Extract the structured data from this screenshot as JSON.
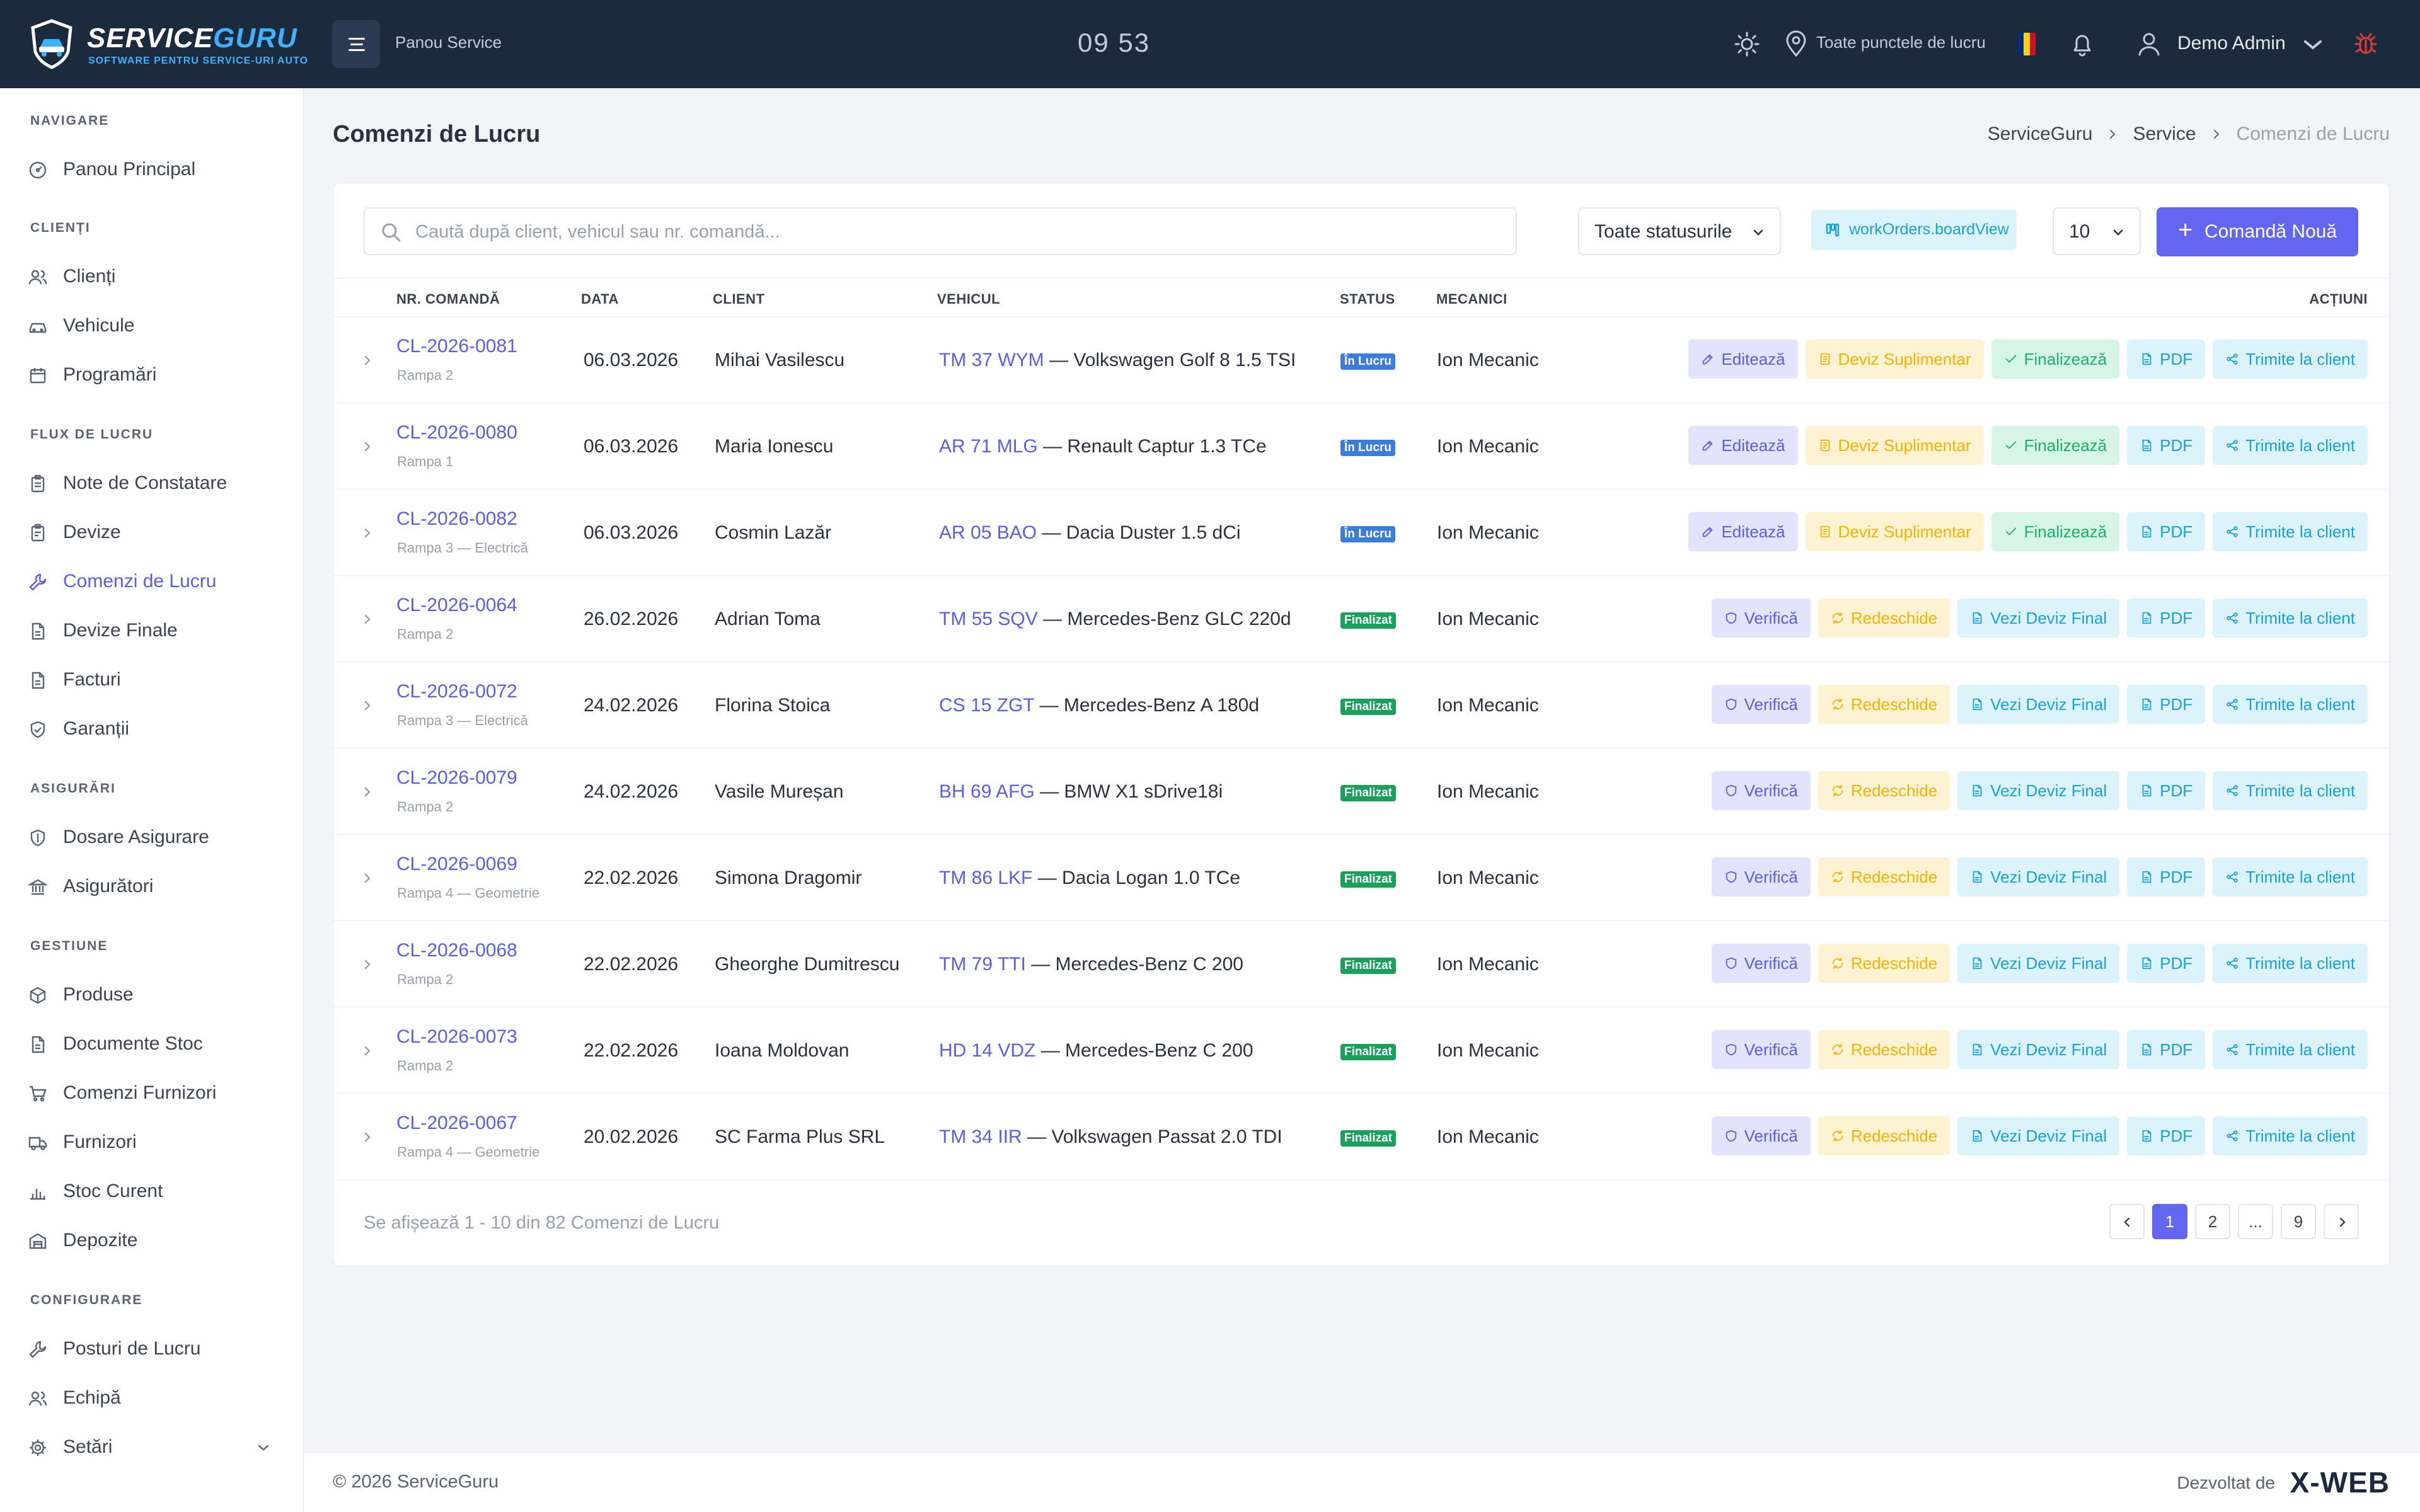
{
  "header": {
    "brand_part1": "SERVICE",
    "brand_part2": "GURU",
    "tagline": "SOFTWARE PENTRU SERVICE-URI AUTO",
    "panel_title": "Panou Service",
    "clock": "09 53",
    "locations": "Toate punctele de lucru",
    "user_name": "Demo Admin",
    "flag_colors": [
      "#002b7f",
      "#fcd116",
      "#ce1126"
    ]
  },
  "sidebar": {
    "sections": [
      {
        "title": "NAVIGARE",
        "items": [
          {
            "label": "Panou Principal",
            "icon": "dashboard-icon"
          }
        ]
      },
      {
        "title": "CLIENȚI",
        "items": [
          {
            "label": "Clienți",
            "icon": "users-icon"
          },
          {
            "label": "Vehicule",
            "icon": "car-icon"
          },
          {
            "label": "Programări",
            "icon": "calendar-icon"
          }
        ]
      },
      {
        "title": "FLUX DE LUCRU",
        "items": [
          {
            "label": "Note de Constatare",
            "icon": "clipboard-icon"
          },
          {
            "label": "Devize",
            "icon": "clipboard-icon"
          },
          {
            "label": "Comenzi de Lucru",
            "icon": "wrench-icon"
          },
          {
            "label": "Devize Finale",
            "icon": "file-icon"
          },
          {
            "label": "Facturi",
            "icon": "file-icon"
          },
          {
            "label": "Garanții",
            "icon": "shield-check-icon"
          }
        ]
      },
      {
        "title": "ASIGURĂRI",
        "items": [
          {
            "label": "Dosare Asigurare",
            "icon": "shield-icon"
          },
          {
            "label": "Asigurători",
            "icon": "bank-icon"
          }
        ]
      },
      {
        "title": "GESTIUNE",
        "items": [
          {
            "label": "Produse",
            "icon": "box-icon"
          },
          {
            "label": "Documente Stoc",
            "icon": "file-icon"
          },
          {
            "label": "Comenzi Furnizori",
            "icon": "cart-icon"
          },
          {
            "label": "Furnizori",
            "icon": "truck-icon"
          },
          {
            "label": "Stoc Curent",
            "icon": "chart-icon"
          },
          {
            "label": "Depozite",
            "icon": "warehouse-icon"
          }
        ]
      },
      {
        "title": "CONFIGURARE",
        "items": [
          {
            "label": "Posturi de Lucru",
            "icon": "wrench-icon"
          },
          {
            "label": "Echipă",
            "icon": "users-icon"
          },
          {
            "label": "Setări",
            "icon": "gear-icon"
          }
        ]
      }
    ],
    "active_item": "Comenzi de Lucru"
  },
  "main": {
    "page_title": "Comenzi de Lucru",
    "breadcrumb": [
      "ServiceGuru",
      "Service",
      "Comenzi de Lucru"
    ],
    "search_placeholder": "Caută după client, vehicul sau nr. comandă...",
    "status_filter": "Toate statusurile",
    "board_view_label": "workOrders.boardView",
    "per_page": "10",
    "new_order_label": "Comandă Nouă",
    "columns": [
      "NR. COMANDĂ",
      "DATA",
      "CLIENT",
      "VEHICUL",
      "STATUS",
      "MECANICI",
      "ACȚIUNI"
    ],
    "actions_in_progress": [
      "Editează",
      "Deviz Suplimentar",
      "Finalizează",
      "PDF",
      "Trimite la client"
    ],
    "actions_finished": [
      "Verifică",
      "Redeschide",
      "Vezi Deviz Final",
      "PDF",
      "Trimite la client"
    ],
    "status_colors": {
      "În Lucru": "#3b7ddd",
      "Finalizat": "#19a05a"
    },
    "rows": [
      {
        "id": "CL-2026-0081",
        "bay": "Rampa 2",
        "date": "06.03.2026",
        "client": "Mihai Vasilescu",
        "plate": "TM 37 WYM",
        "vehicle": " — Volkswagen Golf 8 1.5 TSI",
        "status": "În Lucru",
        "mechanic": "Ion Mecanic"
      },
      {
        "id": "CL-2026-0080",
        "bay": "Rampa 1",
        "date": "06.03.2026",
        "client": "Maria Ionescu",
        "plate": "AR 71 MLG",
        "vehicle": " — Renault Captur 1.3 TCe",
        "status": "În Lucru",
        "mechanic": "Ion Mecanic"
      },
      {
        "id": "CL-2026-0082",
        "bay": "Rampa 3 — Electrică",
        "date": "06.03.2026",
        "client": "Cosmin Lazăr",
        "plate": "AR 05 BAO",
        "vehicle": " — Dacia Duster 1.5 dCi",
        "status": "În Lucru",
        "mechanic": "Ion Mecanic"
      },
      {
        "id": "CL-2026-0064",
        "bay": "Rampa 2",
        "date": "26.02.2026",
        "client": "Adrian Toma",
        "plate": "TM 55 SQV",
        "vehicle": " — Mercedes-Benz GLC 220d",
        "status": "Finalizat",
        "mechanic": "Ion Mecanic"
      },
      {
        "id": "CL-2026-0072",
        "bay": "Rampa 3 — Electrică",
        "date": "24.02.2026",
        "client": "Florina Stoica",
        "plate": "CS 15 ZGT",
        "vehicle": " — Mercedes-Benz A 180d",
        "status": "Finalizat",
        "mechanic": "Ion Mecanic"
      },
      {
        "id": "CL-2026-0079",
        "bay": "Rampa 2",
        "date": "24.02.2026",
        "client": "Vasile Mureșan",
        "plate": "BH 69 AFG",
        "vehicle": " — BMW X1 sDrive18i",
        "status": "Finalizat",
        "mechanic": "Ion Mecanic"
      },
      {
        "id": "CL-2026-0069",
        "bay": "Rampa 4 — Geometrie",
        "date": "22.02.2026",
        "client": "Simona Dragomir",
        "plate": "TM 86 LKF",
        "vehicle": " — Dacia Logan 1.0 TCe",
        "status": "Finalizat",
        "mechanic": "Ion Mecanic"
      },
      {
        "id": "CL-2026-0068",
        "bay": "Rampa 2",
        "date": "22.02.2026",
        "client": "Gheorghe Dumitrescu",
        "plate": "TM 79 TTI",
        "vehicle": " — Mercedes-Benz C 200",
        "status": "Finalizat",
        "mechanic": "Ion Mecanic"
      },
      {
        "id": "CL-2026-0073",
        "bay": "Rampa 2",
        "date": "22.02.2026",
        "client": "Ioana Moldovan",
        "plate": "HD 14 VDZ",
        "vehicle": " — Mercedes-Benz C 200",
        "status": "Finalizat",
        "mechanic": "Ion Mecanic"
      },
      {
        "id": "CL-2026-0067",
        "bay": "Rampa 4 — Geometrie",
        "date": "20.02.2026",
        "client": "SC Farma Plus SRL",
        "plate": "TM 34 IIR",
        "vehicle": " — Volkswagen Passat 2.0 TDI",
        "status": "Finalizat",
        "mechanic": "Ion Mecanic"
      }
    ],
    "summary": "Se afișează 1 - 10 din 82 Comenzi de Lucru",
    "pagination": [
      "1",
      "2",
      "...",
      "9"
    ],
    "current_page": "1"
  },
  "footer": {
    "copyright": "© 2026 ServiceGuru",
    "developed_by": "Dezvoltat de",
    "developer_logo": "X-WEB"
  }
}
